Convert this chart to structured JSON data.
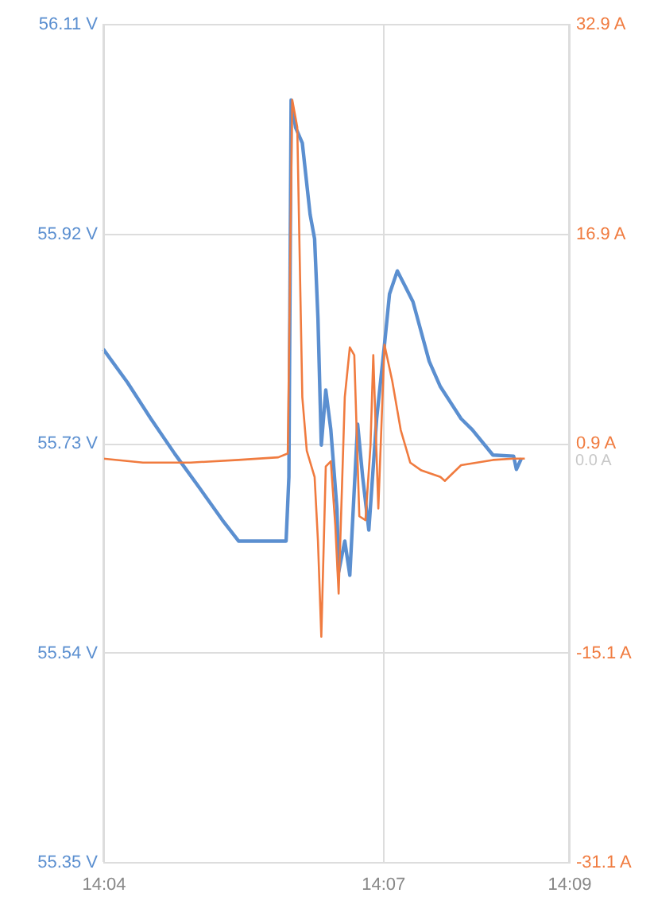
{
  "chart_data": {
    "type": "line",
    "x": [
      14.0667,
      14.071,
      14.0752,
      14.0795,
      14.0838,
      14.088,
      14.0909,
      14.0994,
      14.0999,
      14.1003,
      14.1011,
      14.1023,
      14.1037,
      14.1045,
      14.1051,
      14.1057,
      14.1065,
      14.1074,
      14.1085,
      14.1088,
      14.1099,
      14.1108,
      14.1122,
      14.1131,
      14.1142,
      14.1156,
      14.117,
      14.1179,
      14.1193,
      14.1207,
      14.1221,
      14.125,
      14.127,
      14.1307,
      14.1327,
      14.1364,
      14.1401,
      14.1406,
      14.1415
    ],
    "series": [
      {
        "color": "#5b8fd0",
        "values": [
          55.815,
          55.785,
          55.752,
          55.72,
          55.69,
          55.66,
          55.641,
          55.641,
          55.699,
          56.041,
          56.016,
          56.002,
          55.937,
          55.915,
          55.843,
          55.728,
          55.778,
          55.742,
          55.67,
          55.613,
          55.641,
          55.61,
          55.747,
          55.699,
          55.651,
          55.752,
          55.819,
          55.865,
          55.886,
          55.872,
          55.858,
          55.804,
          55.781,
          55.752,
          55.742,
          55.719,
          55.718,
          55.706,
          55.716
        ]
      },
      {
        "color": "#f07b3f",
        "axis": "y2",
        "x": [
          14.0667,
          14.0738,
          14.0823,
          14.0909,
          14.098,
          14.0997,
          14.1005,
          14.1014,
          14.1023,
          14.1031,
          14.1045,
          14.1051,
          14.1057,
          14.1065,
          14.1074,
          14.1082,
          14.1088,
          14.1099,
          14.1108,
          14.1116,
          14.1125,
          14.1136,
          14.1145,
          14.115,
          14.1159,
          14.117,
          14.1184,
          14.1199,
          14.1216,
          14.1236,
          14.127,
          14.1278,
          14.1307,
          14.1364,
          14.1401,
          14.1421
        ],
        "values": [
          -0.3,
          -0.6,
          -0.6,
          -0.4,
          -0.2,
          0.1,
          27.1,
          25.0,
          4.4,
          0.3,
          -1.7,
          -6.6,
          -13.9,
          -0.9,
          -0.5,
          -5.4,
          -10.6,
          4.4,
          8.2,
          7.6,
          -4.7,
          -5.0,
          0.7,
          7.6,
          -4.1,
          8.4,
          5.6,
          1.9,
          -0.6,
          -1.2,
          -1.7,
          -2.0,
          -0.8,
          -0.4,
          -0.3,
          -0.3
        ]
      }
    ],
    "xlim": [
      14.0667,
      14.15
    ],
    "xticks": [
      {
        "value": 14.0667,
        "label": "14:04"
      },
      {
        "value": 14.1167,
        "label": "14:07"
      },
      {
        "value": 14.15,
        "label": "14:09"
      }
    ],
    "ylim": [
      55.35,
      56.11
    ],
    "yticks": [
      {
        "value": 55.35,
        "label": "55.35 V"
      },
      {
        "value": 55.54,
        "label": "55.54 V"
      },
      {
        "value": 55.73,
        "label": "55.73 V"
      },
      {
        "value": 55.92,
        "label": "55.92 V"
      },
      {
        "value": 56.11,
        "label": "56.11 V"
      }
    ],
    "y2lim": [
      -31.1,
      32.9
    ],
    "y2ticks": [
      {
        "value": -31.1,
        "label": "-31.1 A"
      },
      {
        "value": -15.1,
        "label": "-15.1 A"
      },
      {
        "value": 0.9,
        "label": "0.9 A"
      },
      {
        "value": 16.9,
        "label": "16.9 A"
      },
      {
        "value": 32.9,
        "label": "32.9 A"
      }
    ],
    "annotations": [
      "0.0 A"
    ],
    "grid": true,
    "line_style": "solid",
    "marker": "none"
  }
}
